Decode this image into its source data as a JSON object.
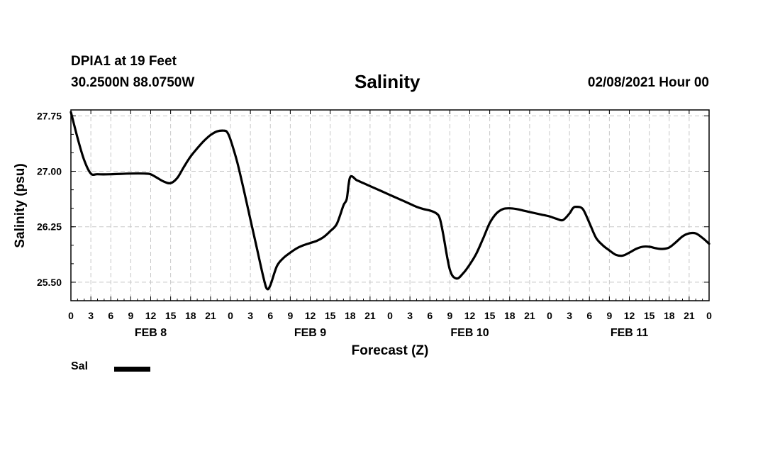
{
  "header": {
    "station": "DPIA1 at 19 Feet",
    "coords": "30.2500N 88.0750W",
    "title": "Salinity",
    "datetime": "02/08/2021 Hour 00"
  },
  "legend": {
    "label": "Sal",
    "color": "#000000"
  },
  "chart_data": {
    "type": "line",
    "title": "Salinity",
    "xlabel": "Forecast (Z)",
    "ylabel": "Salinity (psu)",
    "x_unit": "hours since 02/08/2021 00Z",
    "xlim": [
      0,
      96
    ],
    "ylim": [
      25.25,
      27.83
    ],
    "yticks": [
      27.75,
      27.0,
      26.25,
      25.5
    ],
    "ytick_labels": [
      "27.75",
      "27.00",
      "26.25",
      "25.50"
    ],
    "xtick_labels": [
      "0",
      "3",
      "6",
      "9",
      "12",
      "15",
      "18",
      "21",
      "0",
      "3",
      "6",
      "9",
      "12",
      "15",
      "18",
      "21",
      "0",
      "3",
      "6",
      "9",
      "12",
      "15",
      "18",
      "21",
      "0",
      "3",
      "6",
      "9",
      "12",
      "15",
      "18",
      "21",
      "0"
    ],
    "day_labels": [
      {
        "label": "FEB 8",
        "center_hour": 12
      },
      {
        "label": "FEB 9",
        "center_hour": 36
      },
      {
        "label": "FEB 10",
        "center_hour": 60
      },
      {
        "label": "FEB 11",
        "center_hour": 84
      }
    ],
    "grid": true,
    "series": [
      {
        "name": "Sal",
        "color": "#000000",
        "x": [
          0,
          1,
          2,
          3,
          4,
          6,
          9,
          11,
          12,
          13,
          14,
          15,
          16,
          17,
          18,
          19,
          20,
          21,
          22,
          23,
          23.5,
          24,
          25,
          26,
          27,
          28,
          29,
          29.5,
          30,
          31,
          32,
          33,
          34,
          35,
          36,
          37,
          38,
          39,
          40,
          41,
          41.5,
          42,
          43,
          44,
          45,
          46,
          47,
          48,
          49,
          50,
          51,
          52,
          53,
          54,
          55,
          55.5,
          56,
          57,
          58,
          59,
          60,
          61,
          62,
          63,
          64,
          65,
          66,
          67,
          68,
          69,
          70,
          71,
          72,
          73,
          74,
          75,
          75.5,
          76,
          77,
          78,
          79,
          80,
          81,
          82,
          83,
          84,
          85,
          86,
          87,
          88,
          89,
          90,
          91,
          92,
          93,
          94,
          95,
          96
        ],
        "y": [
          27.8,
          27.45,
          27.15,
          26.97,
          26.96,
          26.96,
          26.97,
          26.97,
          26.96,
          26.91,
          26.86,
          26.84,
          26.91,
          27.06,
          27.2,
          27.31,
          27.41,
          27.49,
          27.54,
          27.55,
          27.53,
          27.43,
          27.13,
          26.75,
          26.35,
          25.95,
          25.55,
          25.41,
          25.46,
          25.72,
          25.83,
          25.9,
          25.96,
          26.0,
          26.03,
          26.06,
          26.11,
          26.19,
          26.29,
          26.54,
          26.63,
          26.92,
          26.88,
          26.84,
          26.8,
          26.76,
          26.72,
          26.68,
          26.64,
          26.6,
          26.56,
          26.52,
          26.49,
          26.47,
          26.43,
          26.36,
          26.15,
          25.67,
          25.55,
          25.62,
          25.74,
          25.89,
          26.09,
          26.3,
          26.43,
          26.49,
          26.5,
          26.49,
          26.47,
          26.45,
          26.43,
          26.41,
          26.39,
          26.36,
          26.34,
          26.43,
          26.5,
          26.52,
          26.49,
          26.3,
          26.1,
          26.0,
          25.93,
          25.87,
          25.86,
          25.9,
          25.95,
          25.98,
          25.98,
          25.96,
          25.95,
          25.97,
          26.04,
          26.12,
          26.16,
          26.16,
          26.1,
          26.02
        ]
      }
    ]
  }
}
